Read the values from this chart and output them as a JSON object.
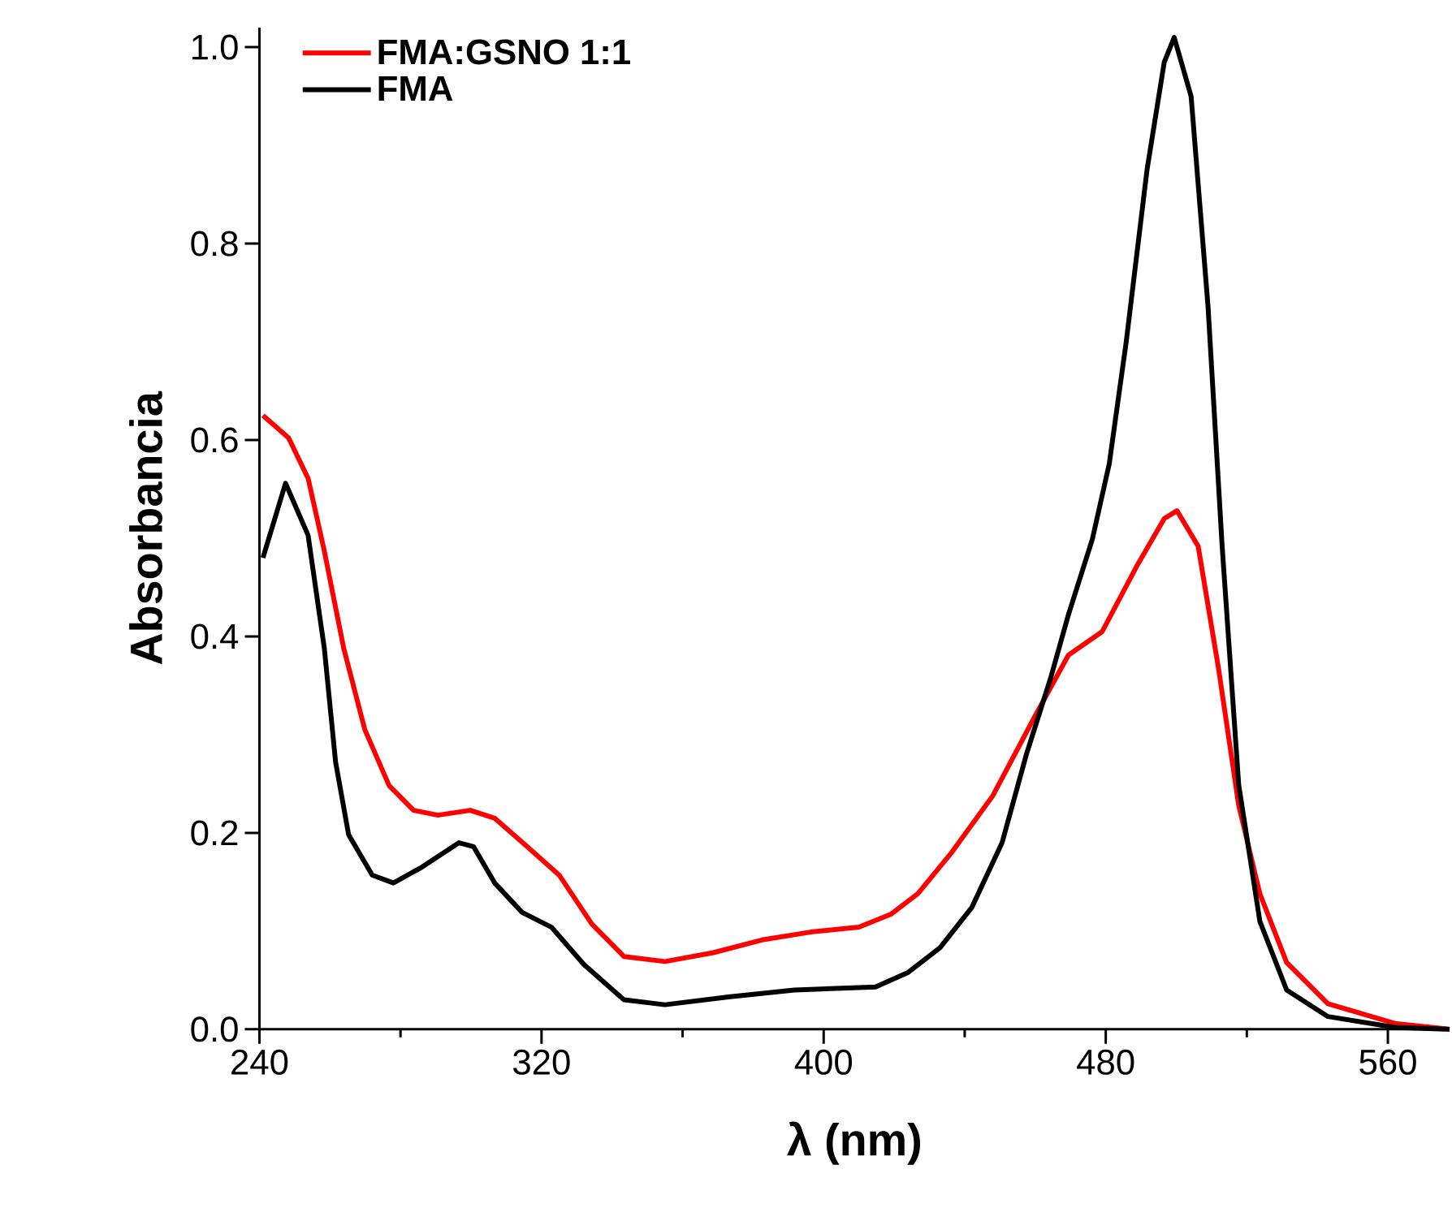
{
  "chart_data": {
    "type": "line",
    "xlabel": "λ (nm)",
    "ylabel": "Absorbancia",
    "xlim": [
      240,
      577.5
    ],
    "ylim": [
      0,
      1.02
    ],
    "xticks": [
      240,
      {
        "value": 280,
        "label": null
      },
      320,
      {
        "value": 360,
        "label": null
      },
      400,
      {
        "value": 440,
        "label": null
      },
      480,
      {
        "value": 520,
        "label": null
      },
      560
    ],
    "yticks": [
      {
        "value": 0,
        "label": "0.0"
      },
      {
        "value": 0.2,
        "label": "0.2"
      },
      {
        "value": 0.4,
        "label": "0.4"
      },
      {
        "value": 0.6,
        "label": "0.6"
      },
      {
        "value": 0.8,
        "label": "0.8"
      },
      {
        "value": 1.0,
        "label": "1.0"
      }
    ],
    "grid": false,
    "legend": "top left",
    "marker": "none",
    "line_style": "solid",
    "series": [
      {
        "name": "FMA:GSNO 1:1",
        "color": "#ff0000",
        "x": [
          241,
          248.3,
          253.8,
          258.4,
          263.9,
          269.9,
          276.8,
          283.7,
          290.6,
          299.8,
          306.7,
          315.9,
          325,
          334.3,
          343.4,
          355,
          368.7,
          382.5,
          396.3,
          410,
          419,
          426.7,
          436.3,
          448,
          459.8,
          469.4,
          479,
          488.7,
          496.6,
          500.2,
          506.2,
          512,
          517.7,
          523.7,
          531.3,
          543,
          562,
          577.5
        ],
        "values": [
          0.625,
          0.602,
          0.561,
          0.487,
          0.388,
          0.305,
          0.248,
          0.223,
          0.218,
          0.223,
          0.215,
          0.186,
          0.157,
          0.107,
          0.074,
          0.069,
          0.078,
          0.091,
          0.099,
          0.104,
          0.117,
          0.138,
          0.18,
          0.238,
          0.318,
          0.381,
          0.405,
          0.471,
          0.52,
          0.528,
          0.492,
          0.367,
          0.228,
          0.138,
          0.068,
          0.026,
          0.006,
          0
        ]
      },
      {
        "name": "FMA",
        "color": "#000000",
        "x": [
          241,
          247.4,
          253.8,
          258.4,
          261.6,
          265.3,
          272,
          278,
          286,
          296.6,
          300.7,
          306.7,
          314.5,
          322.8,
          332,
          343.4,
          355,
          373,
          391.7,
          414.7,
          424,
          433,
          442,
          450.6,
          457.5,
          464.4,
          469.4,
          476.2,
          481,
          485.8,
          491.7,
          496.6,
          499.4,
          504.2,
          509,
          513,
          517.7,
          523.7,
          531.3,
          543,
          562,
          577.5
        ],
        "values": [
          0.48,
          0.556,
          0.503,
          0.388,
          0.272,
          0.198,
          0.157,
          0.149,
          0.165,
          0.19,
          0.186,
          0.149,
          0.119,
          0.104,
          0.066,
          0.03,
          0.025,
          0.033,
          0.04,
          0.043,
          0.058,
          0.083,
          0.124,
          0.19,
          0.28,
          0.358,
          0.422,
          0.499,
          0.576,
          0.7,
          0.875,
          0.985,
          1.01,
          0.95,
          0.736,
          0.492,
          0.249,
          0.11,
          0.04,
          0.013,
          0.002,
          0
        ]
      }
    ]
  }
}
